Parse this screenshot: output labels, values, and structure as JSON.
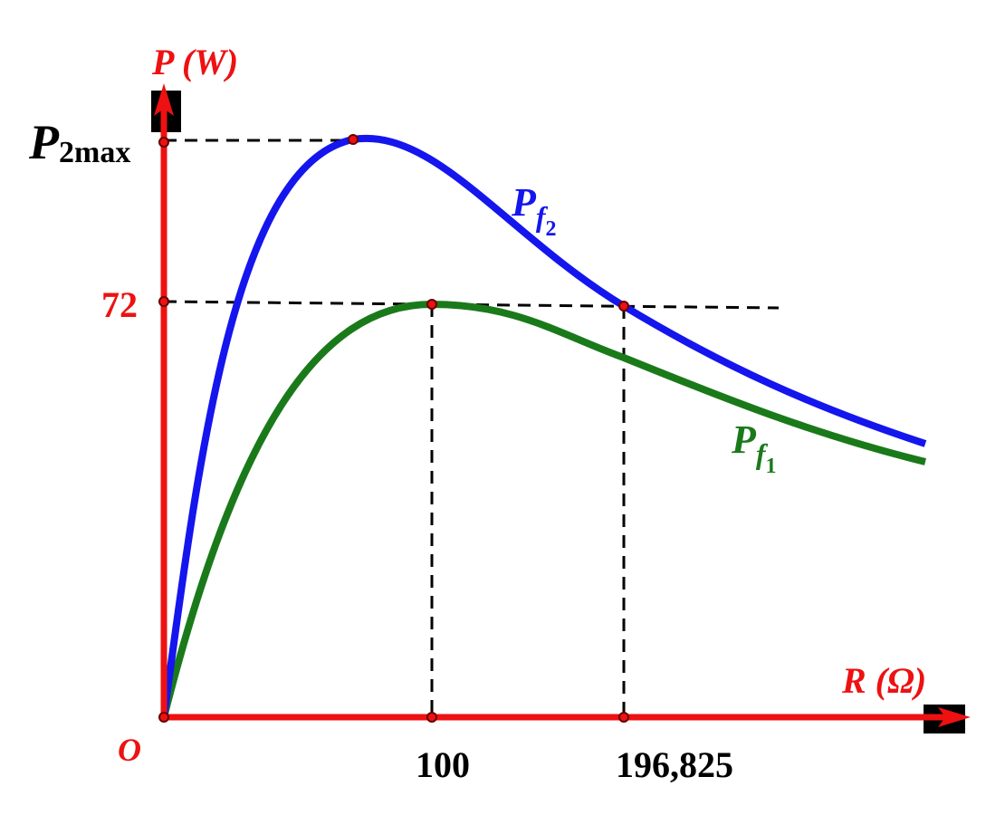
{
  "y_axis_label": "P (W)",
  "x_axis_label": "R (Ω)",
  "origin_label": "O",
  "y_marks": {
    "p2max": {
      "main": "P",
      "sub": "2max"
    },
    "value": "72"
  },
  "x_marks": {
    "first": "100",
    "second": "196,825"
  },
  "curves": {
    "f2": {
      "main": "P",
      "sub": "f",
      "subsub": "2"
    },
    "f1": {
      "main": "P",
      "sub": "f",
      "subsub": "1"
    }
  }
}
